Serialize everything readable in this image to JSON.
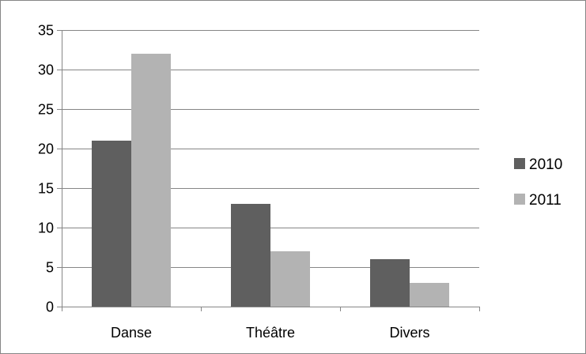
{
  "chart_data": {
    "type": "bar",
    "categories": [
      "Danse",
      "Théâtre",
      "Divers"
    ],
    "series": [
      {
        "name": "2010",
        "values": [
          21,
          13,
          6
        ],
        "color": "#5f5f5f"
      },
      {
        "name": "2011",
        "values": [
          32,
          7,
          3
        ],
        "color": "#b3b3b3"
      }
    ],
    "ylim": [
      0,
      35
    ],
    "y_ticks": [
      0,
      5,
      10,
      15,
      20,
      25,
      30,
      35
    ],
    "grid": true,
    "legend_position": "right"
  }
}
